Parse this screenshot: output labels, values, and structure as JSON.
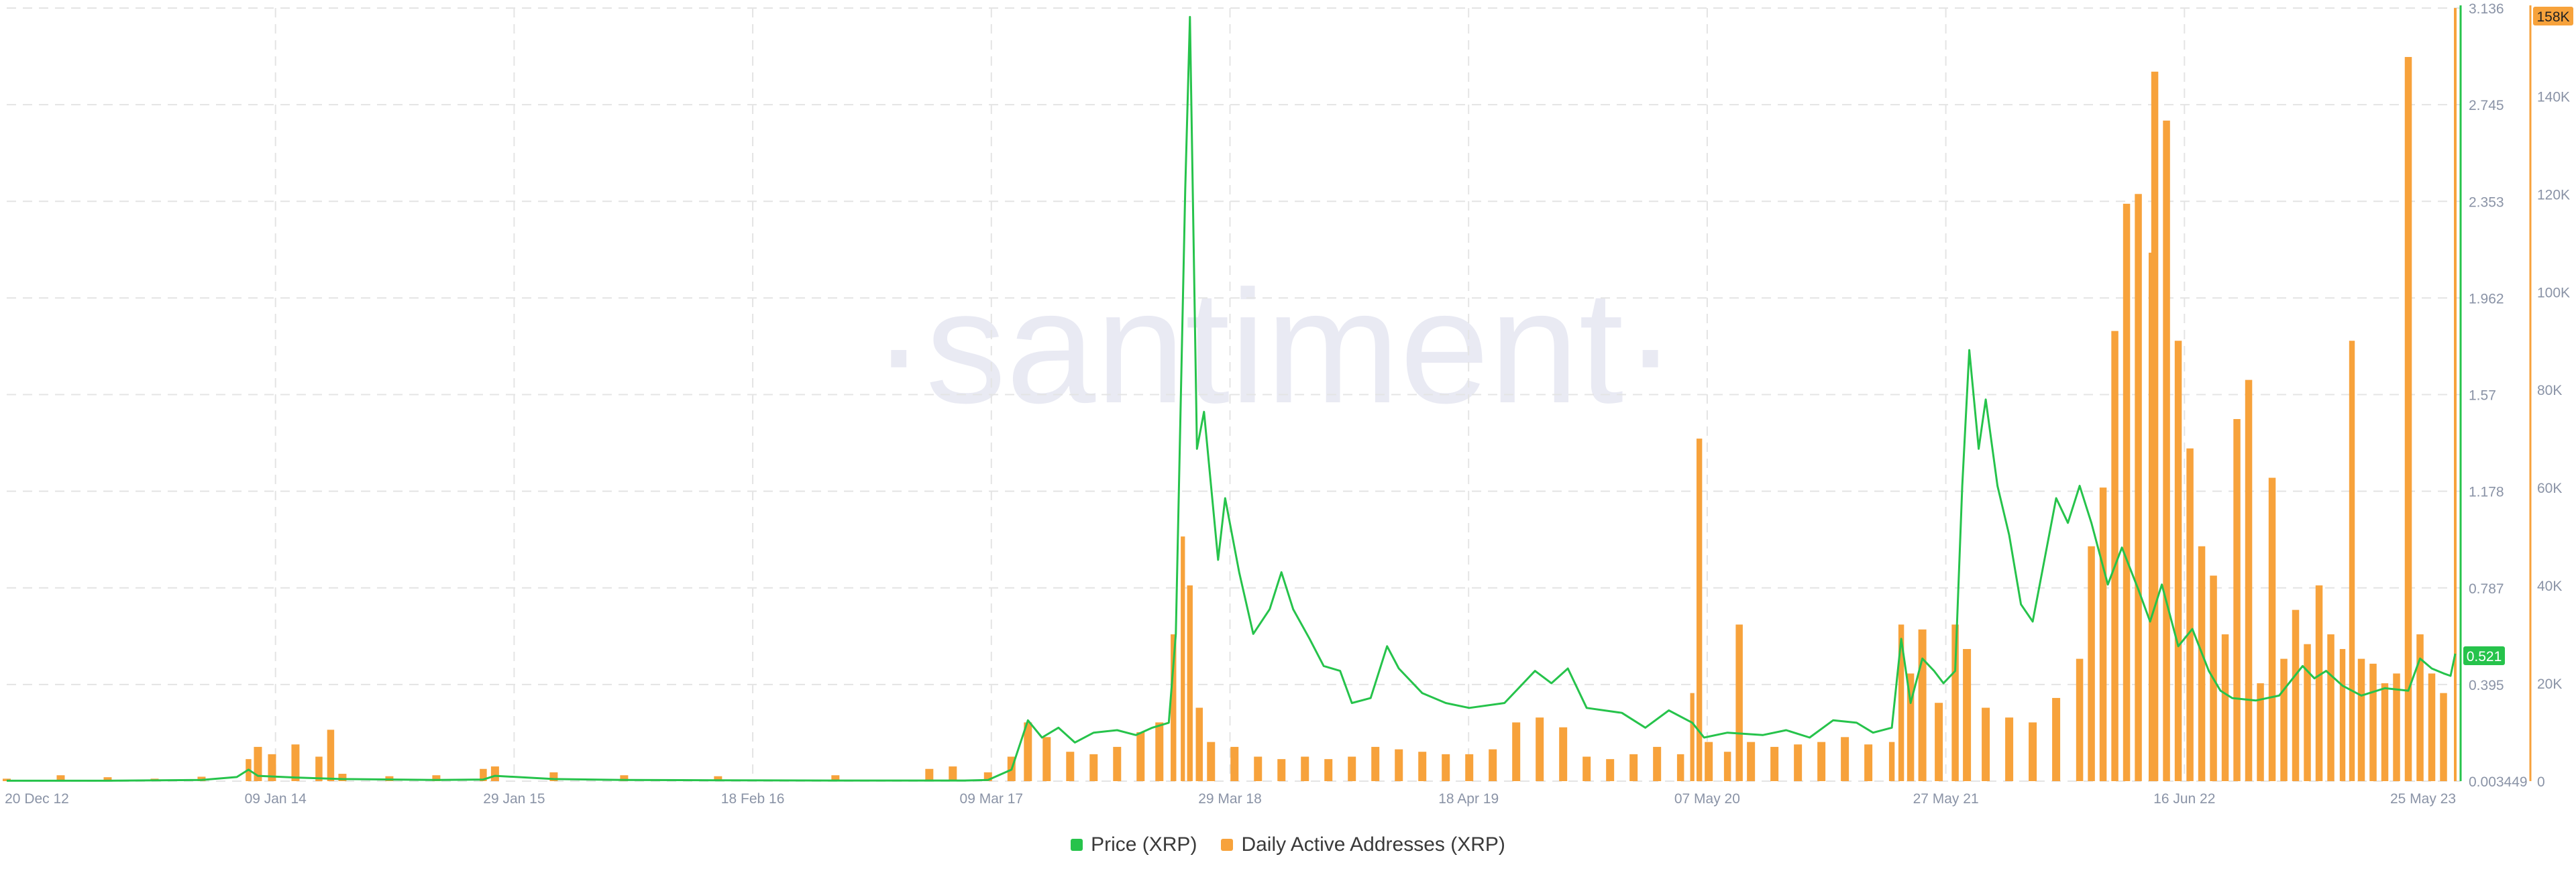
{
  "watermark": "·santiment·",
  "colors": {
    "price": "#26c34b",
    "addresses": "#f7a23b",
    "grid": "#e4e4e4",
    "tick_text": "#8a93a6",
    "watermark": "#e9eaf3"
  },
  "legend": {
    "price_label": "Price (XRP)",
    "addresses_label": "Daily Active Addresses (XRP)"
  },
  "badges": {
    "price_current": "0.521",
    "addresses_max": "158K"
  },
  "chart_data": {
    "type": "line+bar",
    "title": "",
    "x_ticks": [
      "20 Dec 12",
      "09 Jan 14",
      "29 Jan 15",
      "18 Feb 16",
      "09 Mar 17",
      "29 Mar 18",
      "18 Apr 19",
      "07 May 20",
      "27 May 21",
      "16 Jun 22",
      "25 May 23"
    ],
    "x_range": [
      "20 Dec 12",
      "25 May 23"
    ],
    "price_axis": {
      "label": "",
      "ticks": [
        "0.003449",
        "0.395",
        "0.787",
        "1.178",
        "1.57",
        "1.962",
        "2.353",
        "2.745",
        "3.136"
      ],
      "range": [
        0.003449,
        3.136
      ]
    },
    "addresses_axis": {
      "label": "",
      "ticks": [
        "0",
        "20K",
        "40K",
        "60K",
        "80K",
        "100K",
        "120K",
        "140K",
        "158K"
      ],
      "range": [
        0,
        158000
      ]
    },
    "grid": true,
    "legend_position": "bottom",
    "series": [
      {
        "name": "Price (XRP)",
        "type": "line",
        "points": [
          [
            2012.97,
            0.005
          ],
          [
            2013.4,
            0.005
          ],
          [
            2013.8,
            0.008
          ],
          [
            2013.95,
            0.02
          ],
          [
            2014.0,
            0.05
          ],
          [
            2014.04,
            0.025
          ],
          [
            2014.2,
            0.018
          ],
          [
            2014.4,
            0.012
          ],
          [
            2014.8,
            0.008
          ],
          [
            2015.0,
            0.01
          ],
          [
            2015.05,
            0.025
          ],
          [
            2015.3,
            0.012
          ],
          [
            2015.6,
            0.008
          ],
          [
            2016.0,
            0.007
          ],
          [
            2016.5,
            0.006
          ],
          [
            2016.9,
            0.006
          ],
          [
            2017.05,
            0.006
          ],
          [
            2017.15,
            0.008
          ],
          [
            2017.25,
            0.05
          ],
          [
            2017.32,
            0.25
          ],
          [
            2017.38,
            0.18
          ],
          [
            2017.45,
            0.22
          ],
          [
            2017.52,
            0.16
          ],
          [
            2017.6,
            0.2
          ],
          [
            2017.7,
            0.21
          ],
          [
            2017.78,
            0.19
          ],
          [
            2017.85,
            0.22
          ],
          [
            2017.92,
            0.24
          ],
          [
            2017.95,
            0.6
          ],
          [
            2017.99,
            2.4
          ],
          [
            2018.01,
            3.1
          ],
          [
            2018.04,
            1.35
          ],
          [
            2018.07,
            1.5
          ],
          [
            2018.1,
            1.2
          ],
          [
            2018.13,
            0.9
          ],
          [
            2018.16,
            1.15
          ],
          [
            2018.22,
            0.85
          ],
          [
            2018.28,
            0.6
          ],
          [
            2018.35,
            0.7
          ],
          [
            2018.4,
            0.85
          ],
          [
            2018.45,
            0.7
          ],
          [
            2018.52,
            0.58
          ],
          [
            2018.58,
            0.47
          ],
          [
            2018.65,
            0.45
          ],
          [
            2018.7,
            0.32
          ],
          [
            2018.78,
            0.34
          ],
          [
            2018.85,
            0.55
          ],
          [
            2018.9,
            0.46
          ],
          [
            2019.0,
            0.36
          ],
          [
            2019.1,
            0.32
          ],
          [
            2019.2,
            0.3
          ],
          [
            2019.35,
            0.32
          ],
          [
            2019.48,
            0.45
          ],
          [
            2019.55,
            0.4
          ],
          [
            2019.62,
            0.46
          ],
          [
            2019.7,
            0.3
          ],
          [
            2019.85,
            0.28
          ],
          [
            2019.95,
            0.22
          ],
          [
            2020.05,
            0.29
          ],
          [
            2020.15,
            0.24
          ],
          [
            2020.2,
            0.18
          ],
          [
            2020.3,
            0.2
          ],
          [
            2020.45,
            0.19
          ],
          [
            2020.55,
            0.21
          ],
          [
            2020.65,
            0.18
          ],
          [
            2020.75,
            0.25
          ],
          [
            2020.85,
            0.24
          ],
          [
            2020.92,
            0.2
          ],
          [
            2021.0,
            0.22
          ],
          [
            2021.04,
            0.58
          ],
          [
            2021.08,
            0.32
          ],
          [
            2021.13,
            0.5
          ],
          [
            2021.18,
            0.45
          ],
          [
            2021.22,
            0.4
          ],
          [
            2021.27,
            0.45
          ],
          [
            2021.3,
            1.2
          ],
          [
            2021.33,
            1.75
          ],
          [
            2021.37,
            1.35
          ],
          [
            2021.4,
            1.55
          ],
          [
            2021.45,
            1.2
          ],
          [
            2021.5,
            1.0
          ],
          [
            2021.55,
            0.72
          ],
          [
            2021.6,
            0.65
          ],
          [
            2021.65,
            0.9
          ],
          [
            2021.7,
            1.15
          ],
          [
            2021.75,
            1.05
          ],
          [
            2021.8,
            1.2
          ],
          [
            2021.85,
            1.05
          ],
          [
            2021.92,
            0.8
          ],
          [
            2021.98,
            0.95
          ],
          [
            2022.05,
            0.78
          ],
          [
            2022.1,
            0.65
          ],
          [
            2022.15,
            0.8
          ],
          [
            2022.22,
            0.55
          ],
          [
            2022.28,
            0.62
          ],
          [
            2022.35,
            0.45
          ],
          [
            2022.4,
            0.37
          ],
          [
            2022.45,
            0.34
          ],
          [
            2022.55,
            0.33
          ],
          [
            2022.65,
            0.35
          ],
          [
            2022.75,
            0.47
          ],
          [
            2022.8,
            0.42
          ],
          [
            2022.85,
            0.45
          ],
          [
            2022.92,
            0.39
          ],
          [
            2023.0,
            0.35
          ],
          [
            2023.1,
            0.38
          ],
          [
            2023.2,
            0.37
          ],
          [
            2023.25,
            0.5
          ],
          [
            2023.3,
            0.46
          ],
          [
            2023.35,
            0.44
          ],
          [
            2023.38,
            0.43
          ],
          [
            2023.4,
            0.52
          ]
        ]
      },
      {
        "name": "Daily Active Addresses (XRP)",
        "type": "bar",
        "points": [
          [
            2012.97,
            500
          ],
          [
            2013.2,
            1200
          ],
          [
            2013.4,
            800
          ],
          [
            2013.6,
            500
          ],
          [
            2013.8,
            900
          ],
          [
            2014.0,
            4500
          ],
          [
            2014.04,
            7000
          ],
          [
            2014.1,
            5500
          ],
          [
            2014.2,
            7500
          ],
          [
            2014.3,
            5000
          ],
          [
            2014.35,
            10500
          ],
          [
            2014.4,
            1500
          ],
          [
            2014.6,
            1000
          ],
          [
            2014.8,
            1200
          ],
          [
            2015.0,
            2500
          ],
          [
            2015.05,
            3000
          ],
          [
            2015.3,
            1800
          ],
          [
            2015.6,
            1200
          ],
          [
            2016.0,
            1000
          ],
          [
            2016.5,
            1200
          ],
          [
            2016.9,
            2500
          ],
          [
            2017.0,
            3000
          ],
          [
            2017.15,
            1800
          ],
          [
            2017.25,
            5000
          ],
          [
            2017.32,
            12000
          ],
          [
            2017.4,
            9000
          ],
          [
            2017.5,
            6000
          ],
          [
            2017.6,
            5500
          ],
          [
            2017.7,
            7000
          ],
          [
            2017.8,
            10000
          ],
          [
            2017.88,
            12000
          ],
          [
            2017.94,
            30000
          ],
          [
            2017.98,
            50000
          ],
          [
            2018.01,
            40000
          ],
          [
            2018.05,
            15000
          ],
          [
            2018.1,
            8000
          ],
          [
            2018.2,
            7000
          ],
          [
            2018.3,
            5000
          ],
          [
            2018.4,
            4500
          ],
          [
            2018.5,
            5000
          ],
          [
            2018.6,
            4500
          ],
          [
            2018.7,
            5000
          ],
          [
            2018.8,
            7000
          ],
          [
            2018.9,
            6500
          ],
          [
            2019.0,
            6000
          ],
          [
            2019.1,
            5500
          ],
          [
            2019.2,
            5500
          ],
          [
            2019.3,
            6500
          ],
          [
            2019.4,
            12000
          ],
          [
            2019.5,
            13000
          ],
          [
            2019.6,
            11000
          ],
          [
            2019.7,
            5000
          ],
          [
            2019.8,
            4500
          ],
          [
            2019.9,
            5500
          ],
          [
            2020.0,
            7000
          ],
          [
            2020.1,
            5500
          ],
          [
            2020.15,
            18000
          ],
          [
            2020.18,
            70000
          ],
          [
            2020.22,
            8000
          ],
          [
            2020.3,
            6000
          ],
          [
            2020.35,
            32000
          ],
          [
            2020.4,
            8000
          ],
          [
            2020.5,
            7000
          ],
          [
            2020.6,
            7500
          ],
          [
            2020.7,
            8000
          ],
          [
            2020.8,
            9000
          ],
          [
            2020.9,
            7500
          ],
          [
            2021.0,
            8000
          ],
          [
            2021.04,
            32000
          ],
          [
            2021.08,
            22000
          ],
          [
            2021.13,
            31000
          ],
          [
            2021.2,
            16000
          ],
          [
            2021.27,
            32000
          ],
          [
            2021.32,
            27000
          ],
          [
            2021.4,
            15000
          ],
          [
            2021.5,
            13000
          ],
          [
            2021.6,
            12000
          ],
          [
            2021.7,
            17000
          ],
          [
            2021.8,
            25000
          ],
          [
            2021.85,
            48000
          ],
          [
            2021.9,
            60000
          ],
          [
            2021.95,
            92000
          ],
          [
            2022.0,
            118000
          ],
          [
            2022.05,
            120000
          ],
          [
            2022.1,
            108000
          ],
          [
            2022.12,
            145000
          ],
          [
            2022.17,
            135000
          ],
          [
            2022.22,
            90000
          ],
          [
            2022.27,
            68000
          ],
          [
            2022.32,
            48000
          ],
          [
            2022.37,
            42000
          ],
          [
            2022.42,
            30000
          ],
          [
            2022.47,
            74000
          ],
          [
            2022.52,
            82000
          ],
          [
            2022.57,
            20000
          ],
          [
            2022.62,
            62000
          ],
          [
            2022.67,
            25000
          ],
          [
            2022.72,
            35000
          ],
          [
            2022.77,
            28000
          ],
          [
            2022.82,
            40000
          ],
          [
            2022.87,
            30000
          ],
          [
            2022.92,
            27000
          ],
          [
            2022.96,
            90000
          ],
          [
            2023.0,
            25000
          ],
          [
            2023.05,
            24000
          ],
          [
            2023.1,
            20000
          ],
          [
            2023.15,
            22000
          ],
          [
            2023.2,
            148000
          ],
          [
            2023.25,
            30000
          ],
          [
            2023.3,
            22000
          ],
          [
            2023.35,
            18000
          ],
          [
            2023.4,
            158000
          ]
        ]
      }
    ]
  }
}
